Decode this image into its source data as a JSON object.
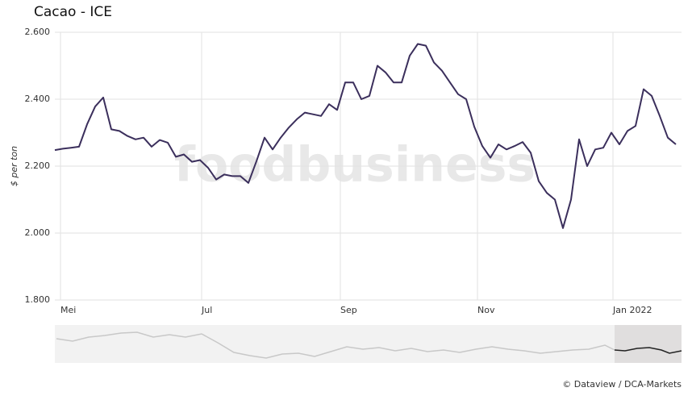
{
  "chart_data": {
    "type": "line",
    "title": "Cacao - ICE",
    "y_label": "$ per ton",
    "watermark": "foodbusiness",
    "source": "© Dataview / DCA-Markets",
    "color": "#3b2f5c",
    "values": [
      2248,
      2252,
      2255,
      2258,
      2325,
      2378,
      2405,
      2310,
      2305,
      2290,
      2280,
      2285,
      2258,
      2278,
      2270,
      2228,
      2235,
      2213,
      2218,
      2195,
      2160,
      2175,
      2170,
      2170,
      2150,
      2215,
      2285,
      2250,
      2285,
      2315,
      2340,
      2360,
      2355,
      2350,
      2385,
      2368,
      2450,
      2450,
      2400,
      2410,
      2500,
      2480,
      2450,
      2450,
      2530,
      2565,
      2560,
      2510,
      2485,
      2450,
      2415,
      2400,
      2318,
      2260,
      2225,
      2265,
      2250,
      2260,
      2272,
      2240,
      2155,
      2120,
      2100,
      2015,
      2100,
      2280,
      2200,
      2250,
      2255,
      2300,
      2265,
      2305,
      2320,
      2430,
      2410,
      2350,
      2285,
      2265
    ],
    "xlim": [
      0,
      77.7
    ],
    "xticks": [
      {
        "value": 0.7,
        "label": "Mei"
      },
      {
        "value": 18.2,
        "label": "Jul"
      },
      {
        "value": 35.4,
        "label": "Sep"
      },
      {
        "value": 52.4,
        "label": "Nov"
      },
      {
        "value": 69.2,
        "label": "Jan 2022"
      }
    ],
    "ylim": [
      1800,
      2600
    ],
    "yticks": [
      {
        "value": 1800,
        "label": "1.800"
      },
      {
        "value": 2000,
        "label": "2.000"
      },
      {
        "value": 2200,
        "label": "2.200"
      },
      {
        "value": 2400,
        "label": "2.400"
      },
      {
        "value": 2600,
        "label": "2.600"
      }
    ],
    "grid": true
  }
}
